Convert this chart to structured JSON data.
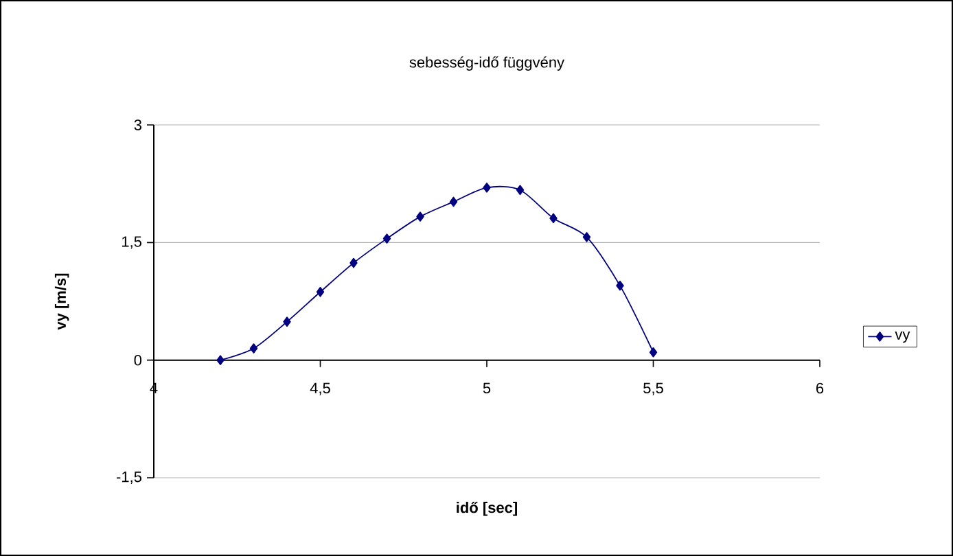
{
  "chart_data": {
    "type": "line",
    "title": "sebesség-idő függvény",
    "xlabel": "idő [sec]",
    "ylabel": "vy [m/s]",
    "x": [
      4.2,
      4.3,
      4.4,
      4.5,
      4.6,
      4.7,
      4.8,
      4.9,
      5.0,
      5.1,
      5.2,
      5.3,
      5.4,
      5.5
    ],
    "series": [
      {
        "name": "vy",
        "color": "#000080",
        "values": [
          0,
          0.15,
          0.49,
          0.87,
          1.24,
          1.55,
          1.83,
          2.02,
          2.2,
          2.17,
          1.81,
          1.57,
          0.95,
          0.1
        ]
      }
    ],
    "xlim": [
      4,
      6
    ],
    "ylim": [
      -1.5,
      3
    ],
    "xticks": [
      4,
      {
        "value": 4.5,
        "label": "4,5"
      },
      5,
      {
        "value": 5.5,
        "label": "5,5"
      },
      6
    ],
    "yticks": [
      {
        "value": -1.5,
        "label": "-1,5"
      },
      0,
      {
        "value": 1.5,
        "label": "1,5"
      },
      3
    ],
    "grid": "y",
    "legend": "right",
    "marker": "diamond",
    "line_style": "solid"
  }
}
